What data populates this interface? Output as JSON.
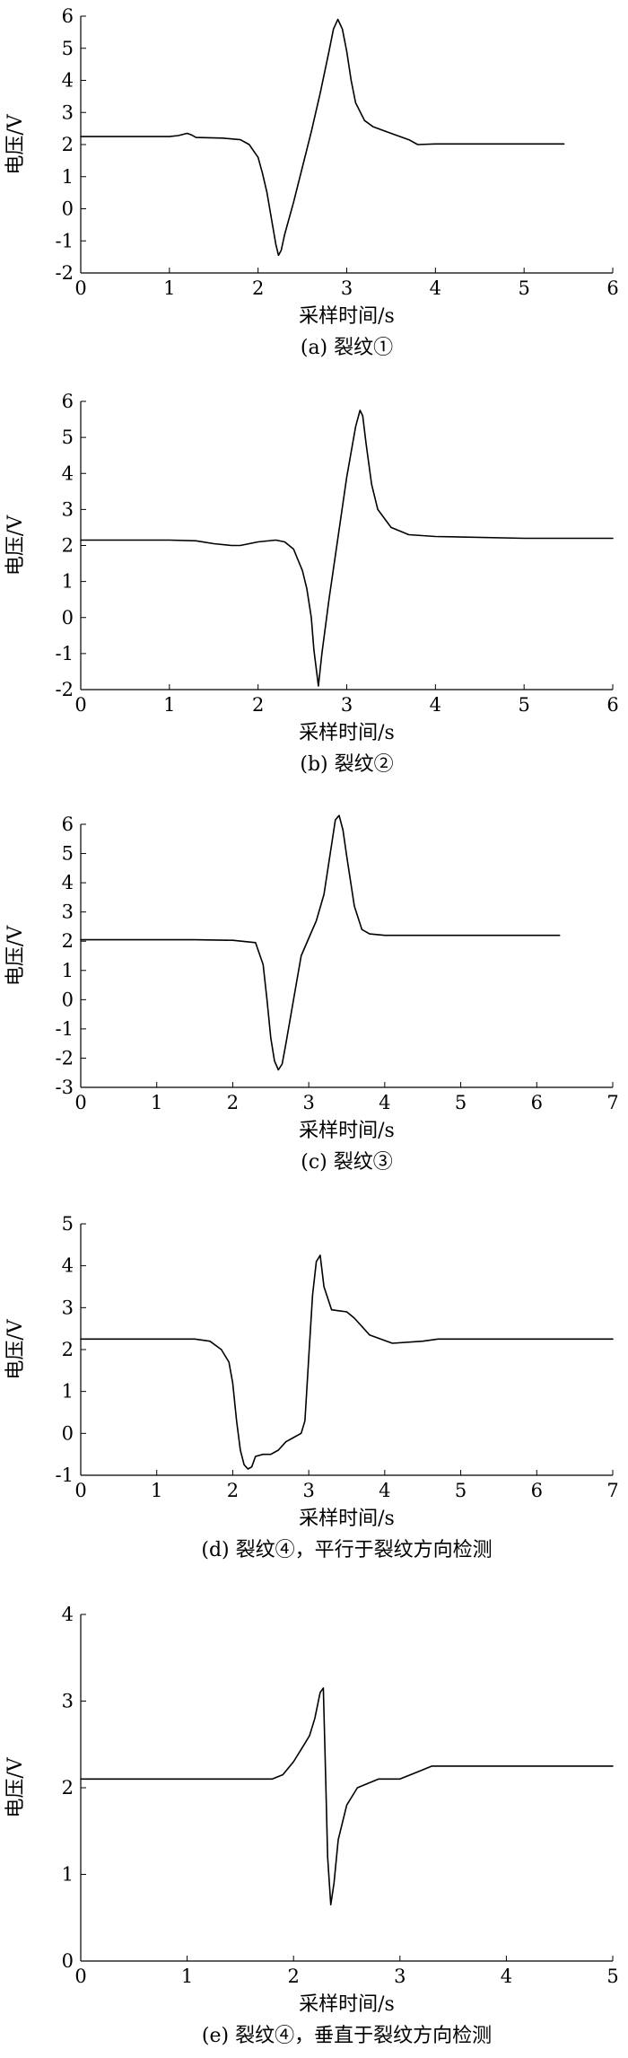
{
  "chart_data": [
    {
      "type": "line",
      "caption": "(a)  裂纹①",
      "xlabel": "采样时间/s",
      "ylabel": "电压/V",
      "xlim": [
        0,
        6
      ],
      "ylim": [
        -2,
        6
      ],
      "xticks": [
        0,
        1,
        2,
        3,
        4,
        5,
        6
      ],
      "yticks": [
        -2,
        -1,
        0,
        1,
        2,
        3,
        4,
        5,
        6
      ],
      "grid": false,
      "series": [
        {
          "x": [
            0,
            1.0,
            1.1,
            1.2,
            1.25,
            1.3,
            1.6,
            1.8,
            1.9,
            2.0,
            2.05,
            2.1,
            2.15,
            2.2,
            2.23,
            2.26,
            2.3,
            2.4,
            2.5,
            2.6,
            2.7,
            2.8,
            2.85,
            2.9,
            2.95,
            3.0,
            3.05,
            3.1,
            3.2,
            3.3,
            3.5,
            3.7,
            3.8,
            4.0,
            4.5,
            5.0,
            5.45
          ],
          "y": [
            2.25,
            2.25,
            2.28,
            2.35,
            2.3,
            2.22,
            2.2,
            2.15,
            2.0,
            1.6,
            1.1,
            0.5,
            -0.3,
            -1.1,
            -1.45,
            -1.3,
            -0.8,
            0.2,
            1.3,
            2.4,
            3.6,
            4.9,
            5.6,
            5.9,
            5.6,
            4.9,
            4.0,
            3.3,
            2.75,
            2.55,
            2.35,
            2.15,
            2.0,
            2.02,
            2.02,
            2.02,
            2.02
          ]
        }
      ]
    },
    {
      "type": "line",
      "caption": "(b)  裂纹②",
      "xlabel": "采样时间/s",
      "ylabel": "电压/V",
      "xlim": [
        0,
        6
      ],
      "ylim": [
        -2,
        6
      ],
      "xticks": [
        0,
        1,
        2,
        3,
        4,
        5,
        6
      ],
      "yticks": [
        -2,
        -1,
        0,
        1,
        2,
        3,
        4,
        5,
        6
      ],
      "grid": false,
      "series": [
        {
          "x": [
            0,
            0.5,
            1.0,
            1.3,
            1.5,
            1.7,
            1.8,
            2.0,
            2.2,
            2.3,
            2.4,
            2.5,
            2.55,
            2.6,
            2.63,
            2.66,
            2.68,
            2.72,
            2.8,
            2.9,
            3.0,
            3.1,
            3.15,
            3.18,
            3.22,
            3.28,
            3.35,
            3.5,
            3.7,
            4.0,
            5.0,
            6.0
          ],
          "y": [
            2.15,
            2.15,
            2.15,
            2.13,
            2.05,
            2.0,
            2.0,
            2.1,
            2.15,
            2.1,
            1.9,
            1.3,
            0.8,
            0.0,
            -0.9,
            -1.5,
            -1.9,
            -1.0,
            0.5,
            2.2,
            3.9,
            5.3,
            5.75,
            5.6,
            4.8,
            3.7,
            3.0,
            2.5,
            2.3,
            2.25,
            2.2,
            2.2
          ]
        }
      ]
    },
    {
      "type": "line",
      "caption": "(c)  裂纹③",
      "xlabel": "采样时间/s",
      "ylabel": "电压/V",
      "xlim": [
        0,
        7
      ],
      "ylim": [
        -3,
        6
      ],
      "xticks": [
        0,
        1,
        2,
        3,
        4,
        5,
        6,
        7
      ],
      "yticks": [
        -3,
        -2,
        -1,
        0,
        1,
        2,
        3,
        4,
        5,
        6
      ],
      "grid": false,
      "series": [
        {
          "x": [
            0,
            0.5,
            1.0,
            1.5,
            2.0,
            2.3,
            2.4,
            2.45,
            2.5,
            2.55,
            2.6,
            2.65,
            2.7,
            2.8,
            2.9,
            3.0,
            3.1,
            3.2,
            3.3,
            3.35,
            3.4,
            3.45,
            3.5,
            3.6,
            3.7,
            3.8,
            4.0,
            5.0,
            6.3
          ],
          "y": [
            2.05,
            2.05,
            2.05,
            2.05,
            2.03,
            1.95,
            1.2,
            0.0,
            -1.3,
            -2.1,
            -2.4,
            -2.2,
            -1.5,
            0.0,
            1.5,
            2.1,
            2.7,
            3.6,
            5.3,
            6.15,
            6.3,
            5.8,
            4.9,
            3.2,
            2.4,
            2.25,
            2.2,
            2.2,
            2.2
          ]
        }
      ]
    },
    {
      "type": "line",
      "caption": "(d)  裂纹④，平行于裂纹方向检测",
      "xlabel": "采样时间/s",
      "ylabel": "电压/V",
      "xlim": [
        0,
        7
      ],
      "ylim": [
        -1,
        5
      ],
      "xticks": [
        0,
        1,
        2,
        3,
        4,
        5,
        6,
        7
      ],
      "yticks": [
        -1,
        0,
        1,
        2,
        3,
        4,
        5
      ],
      "grid": false,
      "series": [
        {
          "x": [
            0,
            0.5,
            1.0,
            1.5,
            1.7,
            1.85,
            1.95,
            2.0,
            2.05,
            2.1,
            2.15,
            2.2,
            2.25,
            2.3,
            2.4,
            2.5,
            2.6,
            2.7,
            2.8,
            2.9,
            2.95,
            3.0,
            3.05,
            3.1,
            3.15,
            3.2,
            3.3,
            3.5,
            3.6,
            3.8,
            4.1,
            4.5,
            4.7,
            5.0,
            6.0,
            7.0
          ],
          "y": [
            2.25,
            2.25,
            2.25,
            2.25,
            2.2,
            2.0,
            1.7,
            1.2,
            0.3,
            -0.4,
            -0.75,
            -0.85,
            -0.8,
            -0.55,
            -0.5,
            -0.5,
            -0.4,
            -0.2,
            -0.1,
            0.0,
            0.3,
            1.8,
            3.3,
            4.1,
            4.25,
            3.5,
            2.95,
            2.9,
            2.75,
            2.35,
            2.15,
            2.2,
            2.25,
            2.25,
            2.25,
            2.25
          ]
        }
      ]
    },
    {
      "type": "line",
      "caption": "(e)  裂纹④，垂直于裂纹方向检测",
      "xlabel": "采样时间/s",
      "ylabel": "电压/V",
      "xlim": [
        0,
        5
      ],
      "ylim": [
        0,
        4
      ],
      "xticks": [
        0,
        1,
        2,
        3,
        4,
        5
      ],
      "yticks": [
        0,
        1,
        2,
        3,
        4
      ],
      "grid": false,
      "series": [
        {
          "x": [
            0,
            0.5,
            1.0,
            1.5,
            1.8,
            1.9,
            2.0,
            2.1,
            2.15,
            2.2,
            2.25,
            2.28,
            2.3,
            2.32,
            2.35,
            2.38,
            2.42,
            2.5,
            2.6,
            2.8,
            3.0,
            3.1,
            3.2,
            3.3,
            3.5,
            4.0,
            5.0
          ],
          "y": [
            2.1,
            2.1,
            2.1,
            2.1,
            2.1,
            2.15,
            2.3,
            2.5,
            2.6,
            2.8,
            3.1,
            3.15,
            2.2,
            1.2,
            0.65,
            0.9,
            1.4,
            1.8,
            2.0,
            2.1,
            2.1,
            2.15,
            2.2,
            2.25,
            2.25,
            2.25,
            2.25
          ]
        }
      ]
    }
  ]
}
